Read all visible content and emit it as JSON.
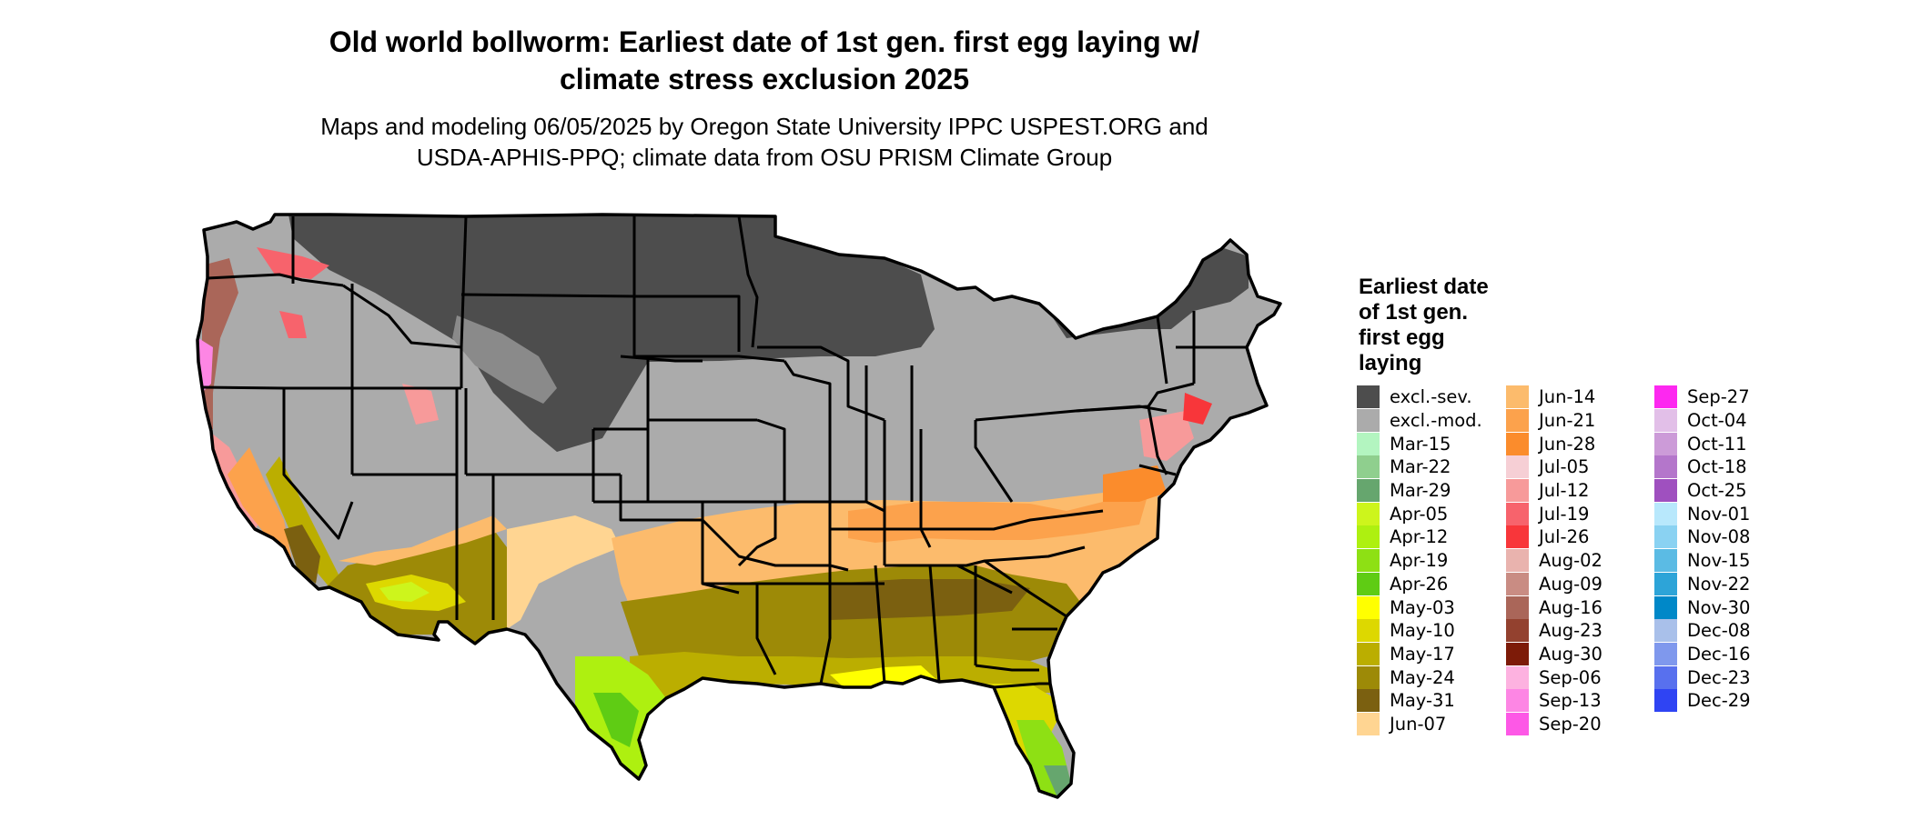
{
  "title_line1": "Old world bollworm: Earliest date of 1st gen. first egg laying w/",
  "title_line2": "climate stress exclusion 2025",
  "subtitle_line1": "Maps and modeling 06/05/2025 by Oregon State University IPPC USPEST.ORG and",
  "subtitle_line2": "USDA-APHIS-PPQ; climate data from OSU PRISM Climate Group",
  "legend": {
    "title_lines": [
      "Earliest date",
      "of 1st gen.",
      "first egg",
      "laying"
    ],
    "columns": [
      [
        {
          "label": "excl.-sev.",
          "color": "#4d4d4d"
        },
        {
          "label": "excl.-mod.",
          "color": "#ababab"
        },
        {
          "label": "Mar-15",
          "color": "#b3f5c0"
        },
        {
          "label": "Mar-22",
          "color": "#8fcf8e"
        },
        {
          "label": "Mar-29",
          "color": "#66a66e"
        },
        {
          "label": "Apr-05",
          "color": "#cdf51c"
        },
        {
          "label": "Apr-12",
          "color": "#aef010"
        },
        {
          "label": "Apr-19",
          "color": "#8ee014"
        },
        {
          "label": "Apr-26",
          "color": "#5fcc14"
        },
        {
          "label": "May-03",
          "color": "#ffff00"
        },
        {
          "label": "May-10",
          "color": "#ddd800"
        },
        {
          "label": "May-17",
          "color": "#bbae00"
        },
        {
          "label": "May-24",
          "color": "#9d8a07"
        },
        {
          "label": "May-31",
          "color": "#7b6010"
        },
        {
          "label": "Jun-07",
          "color": "#ffd592"
        }
      ],
      [
        {
          "label": "Jun-14",
          "color": "#fcbb6c"
        },
        {
          "label": "Jun-21",
          "color": "#fca24c"
        },
        {
          "label": "Jun-28",
          "color": "#fb8c2c"
        },
        {
          "label": "Jul-05",
          "color": "#f6cfd5"
        },
        {
          "label": "Jul-12",
          "color": "#f79a9a"
        },
        {
          "label": "Jul-19",
          "color": "#f7636c"
        },
        {
          "label": "Jul-26",
          "color": "#f8363a"
        },
        {
          "label": "Aug-02",
          "color": "#e9b3ae"
        },
        {
          "label": "Aug-09",
          "color": "#c98c83"
        },
        {
          "label": "Aug-16",
          "color": "#aa6659"
        },
        {
          "label": "Aug-23",
          "color": "#93412f"
        },
        {
          "label": "Aug-30",
          "color": "#7d1b08"
        },
        {
          "label": "Sep-06",
          "color": "#fdb2e0"
        },
        {
          "label": "Sep-13",
          "color": "#fd86e4"
        },
        {
          "label": "Sep-20",
          "color": "#fd58e6"
        }
      ],
      [
        {
          "label": "Sep-27",
          "color": "#fd28f0"
        },
        {
          "label": "Oct-04",
          "color": "#e2bfe8"
        },
        {
          "label": "Oct-11",
          "color": "#cc9bd8"
        },
        {
          "label": "Oct-18",
          "color": "#b476cb"
        },
        {
          "label": "Oct-25",
          "color": "#9f50bf"
        },
        {
          "label": "Nov-01",
          "color": "#b8e8fc"
        },
        {
          "label": "Nov-08",
          "color": "#8ad2f2"
        },
        {
          "label": "Nov-15",
          "color": "#5bbbe4"
        },
        {
          "label": "Nov-22",
          "color": "#2da4d8"
        },
        {
          "label": "Nov-30",
          "color": "#0088c8"
        },
        {
          "label": "Dec-08",
          "color": "#a9c0ea"
        },
        {
          "label": "Dec-16",
          "color": "#7f98ed"
        },
        {
          "label": "Dec-23",
          "color": "#5870ee"
        },
        {
          "label": "Dec-29",
          "color": "#2f44f3"
        }
      ]
    ]
  }
}
